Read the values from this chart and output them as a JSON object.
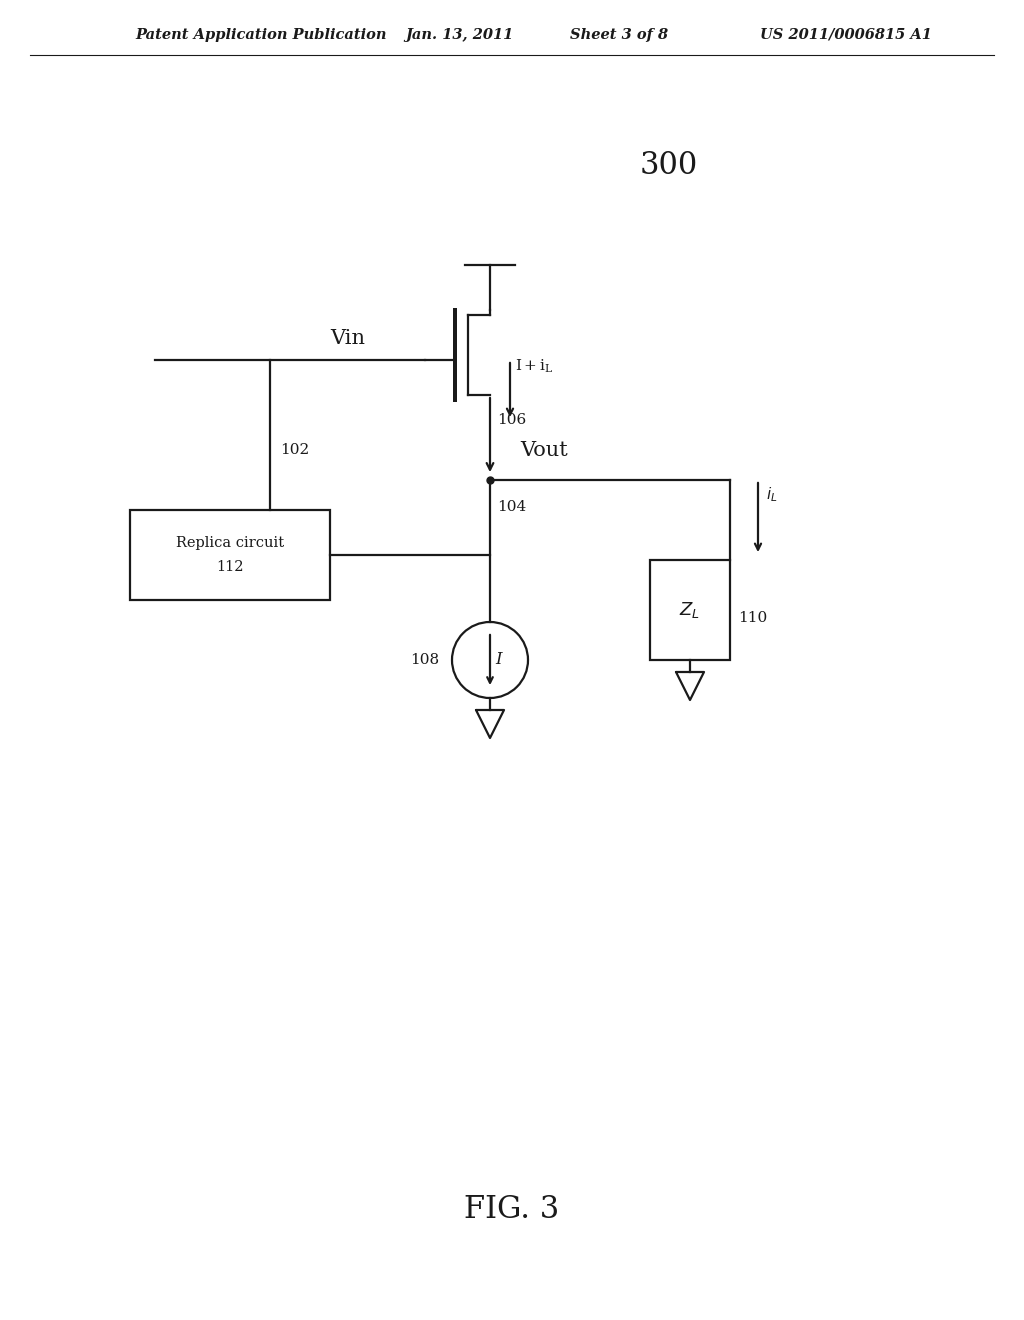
{
  "title_header": "Patent Application Publication",
  "date_header": "Jan. 13, 2011",
  "sheet_header": "Sheet 3 of 8",
  "patent_header": "US 2011/0006815 A1",
  "fig_label": "FIG. 3",
  "circuit_label": "300",
  "background_color": "#ffffff",
  "line_color": "#1a1a1a",
  "text_color": "#1a1a1a",
  "header_font_size": 10.5,
  "fig_label_font_size": 22
}
